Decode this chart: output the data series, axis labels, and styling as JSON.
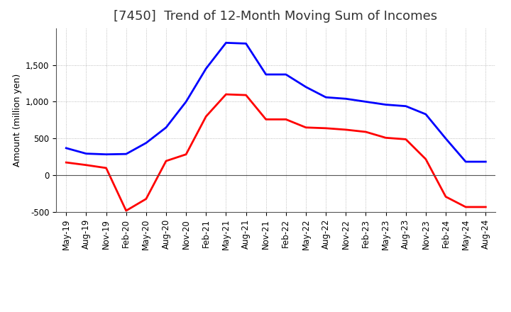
{
  "title": "[7450]  Trend of 12-Month Moving Sum of Incomes",
  "ylabel": "Amount (million yen)",
  "background_color": "#ffffff",
  "plot_background_color": "#ffffff",
  "grid_color": "#aaaaaa",
  "x_labels": [
    "May-19",
    "Aug-19",
    "Nov-19",
    "Feb-20",
    "May-20",
    "Aug-20",
    "Nov-20",
    "Feb-21",
    "May-21",
    "Aug-21",
    "Nov-21",
    "Feb-22",
    "May-22",
    "Aug-22",
    "Nov-22",
    "Feb-23",
    "May-23",
    "Aug-23",
    "Nov-23",
    "Feb-24",
    "May-24",
    "Aug-24"
  ],
  "ordinary_income": [
    370,
    295,
    285,
    290,
    440,
    650,
    1000,
    1450,
    1800,
    1790,
    1370,
    1370,
    1200,
    1060,
    1040,
    1000,
    960,
    940,
    830,
    500,
    185,
    185
  ],
  "net_income": [
    175,
    140,
    100,
    -480,
    -320,
    195,
    285,
    800,
    1100,
    1090,
    760,
    760,
    650,
    640,
    620,
    590,
    510,
    490,
    220,
    -290,
    -430,
    -430
  ],
  "ordinary_income_color": "#0000ff",
  "net_income_color": "#ff0000",
  "ylim": [
    -500,
    2000
  ],
  "yticks": [
    -500,
    0,
    500,
    1000,
    1500
  ],
  "line_width": 2.0,
  "title_fontsize": 13,
  "axis_fontsize": 9,
  "tick_fontsize": 8.5,
  "legend_fontsize": 9
}
